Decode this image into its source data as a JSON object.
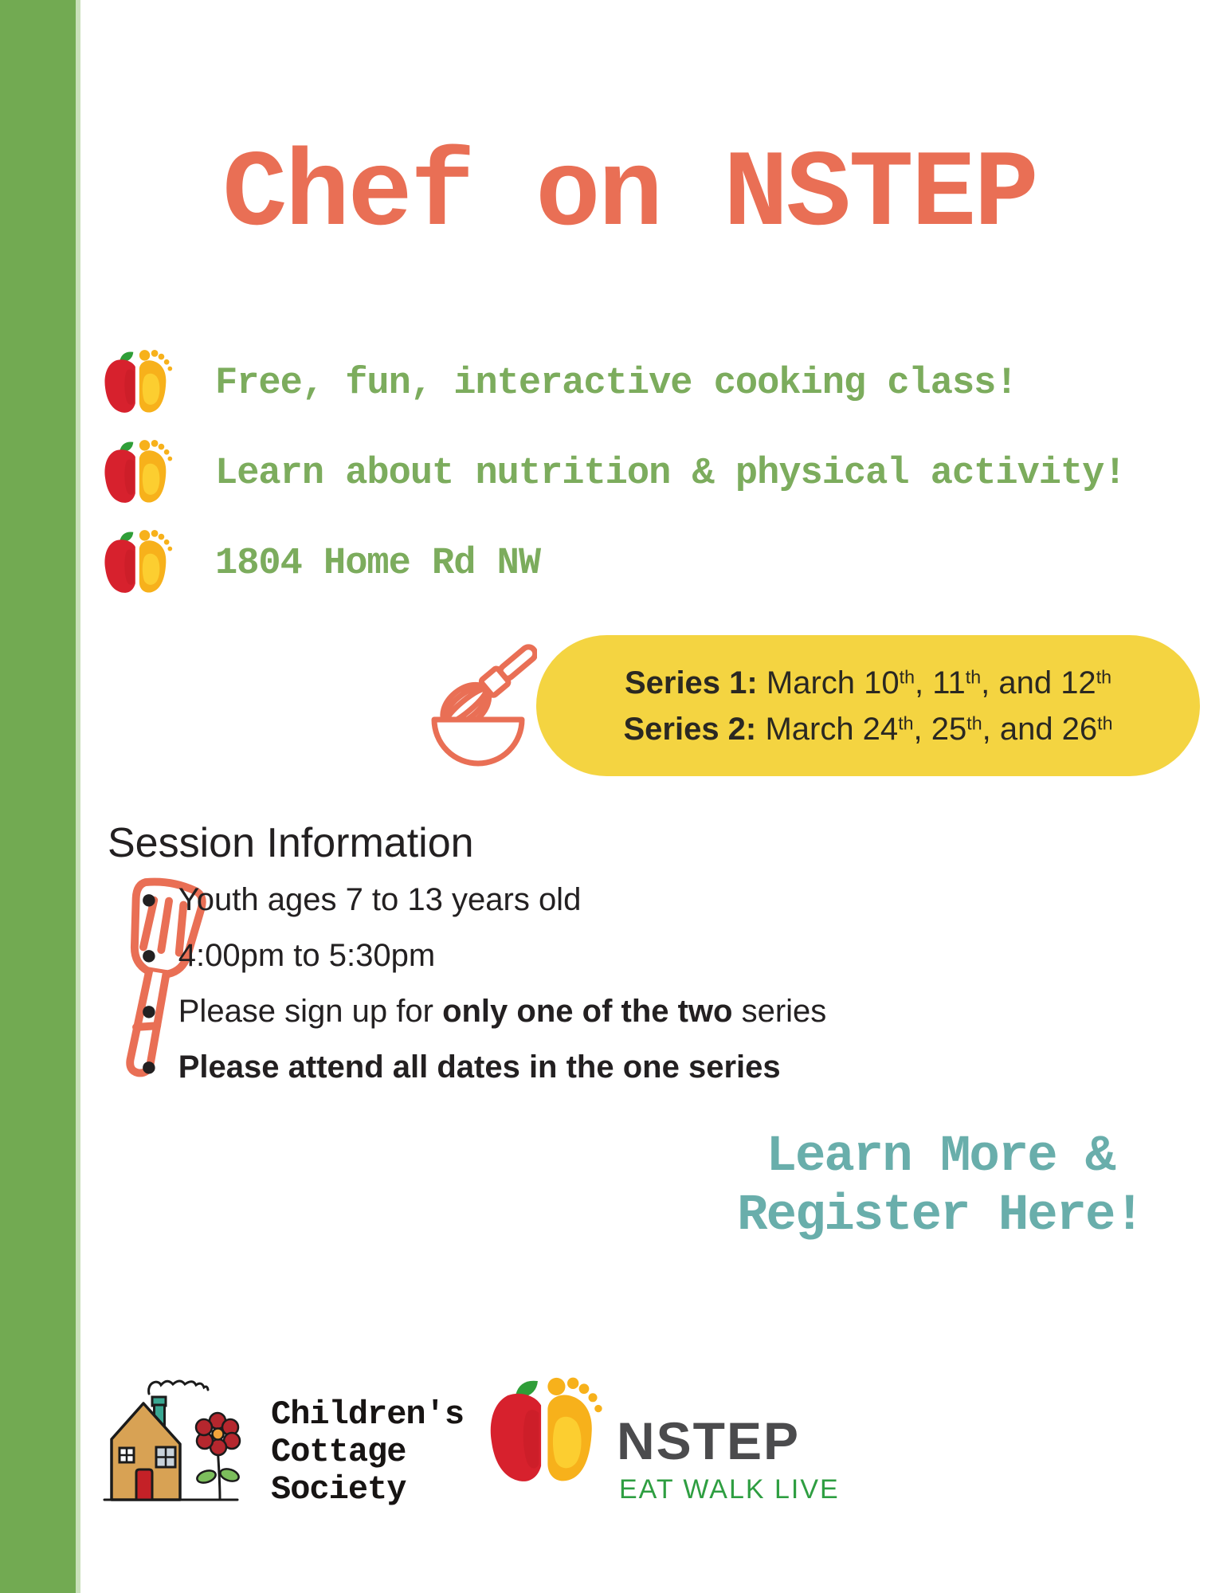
{
  "flyer": {
    "title": "Chef on NSTEP",
    "highlights": [
      "Free, fun, interactive cooking class!",
      "Learn about nutrition & physical activity!",
      "1804 Home Rd NW"
    ],
    "series": [
      {
        "label": "Series 1:",
        "dates": "March 10th, 11th, and 12th"
      },
      {
        "label": "Series 2:",
        "dates": "March 24th, 25th, and 26th"
      }
    ],
    "session": {
      "heading": "Session Information",
      "bullets": [
        {
          "pre": "Youth ages 7 to 13 years old",
          "bold": "",
          "post": ""
        },
        {
          "pre": "4:00pm to 5:30pm",
          "bold": "",
          "post": ""
        },
        {
          "pre": "Please sign up for ",
          "bold": "only one of the two",
          "post": " series"
        },
        {
          "pre": "",
          "bold": "Please attend all dates in the one series",
          "post": ""
        }
      ]
    },
    "cta": {
      "line1": "Learn More &",
      "line2": "Register Here!"
    },
    "logos": {
      "ccs_lines": [
        "Children's",
        "Cottage",
        "Society"
      ],
      "nstep_name": "NSTEP",
      "nstep_tagline": "EAT WALK LIVE"
    },
    "colors": {
      "sidebar_green": "#72AA52",
      "title_coral": "#E96F55",
      "highlight_green": "#7CAC5D",
      "banner_yellow": "#F4D441",
      "icon_coral": "#E96F55",
      "cta_teal": "#69AEAB",
      "nstep_red": "#D7212D",
      "nstep_yellow": "#F7B11B",
      "nstep_leaf": "#2F9E38",
      "nstep_gray": "#4B4B4D",
      "nstep_green": "#2E9E41"
    }
  }
}
